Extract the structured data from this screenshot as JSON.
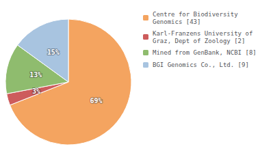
{
  "chart_data": {
    "type": "pie",
    "categories": [
      "Centre for Biodiversity\nGenomics [43]",
      "Karl-Franzens University of\nGraz, Dept of Zoology [2]",
      "Mined from GenBank, NCBI [8]",
      "BGI Genomics Co., Ltd. [9]"
    ],
    "values": [
      69,
      3,
      13,
      15
    ],
    "value_labels": [
      "69%",
      "3%",
      "13%",
      "15%"
    ],
    "colors": [
      "#f4a460",
      "#cd5c5c",
      "#8fbc6e",
      "#a8c4e0"
    ],
    "data_labels": true,
    "legend": "right"
  }
}
